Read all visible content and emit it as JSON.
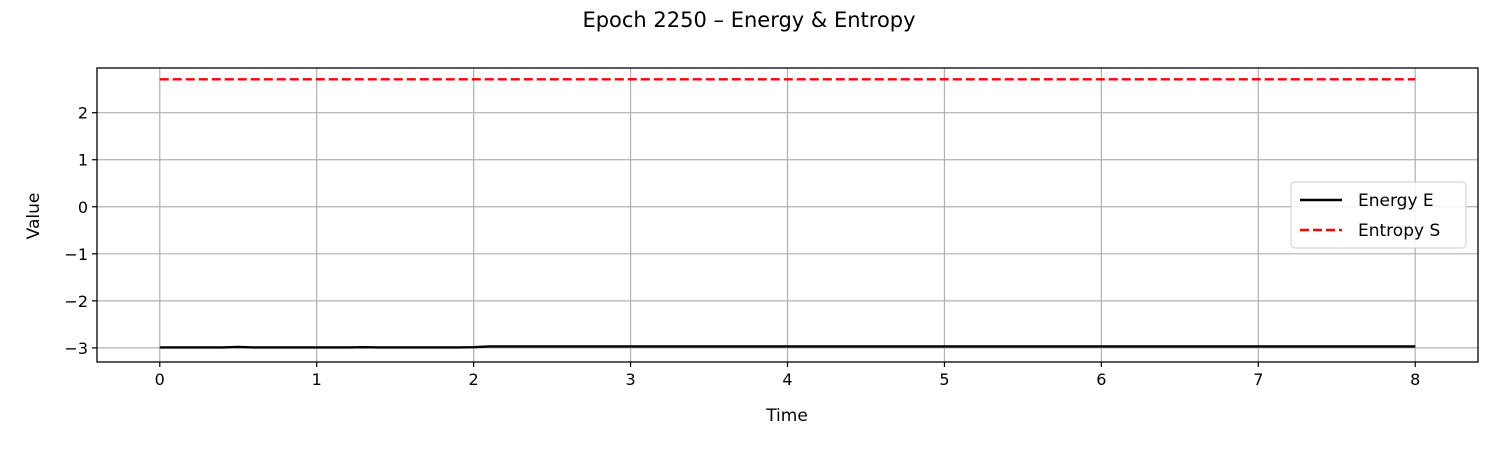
{
  "chart_data": {
    "type": "line",
    "title": "Epoch 2250 – Energy & Entropy",
    "xlabel": "Time",
    "ylabel": "Value",
    "xlim": [
      -0.4,
      8.4
    ],
    "ylim": [
      -3.3,
      2.95
    ],
    "xticks": [
      0,
      1,
      2,
      3,
      4,
      5,
      6,
      7,
      8
    ],
    "xtick_labels": [
      "0",
      "1",
      "2",
      "3",
      "4",
      "5",
      "6",
      "7",
      "8"
    ],
    "yticks": [
      -3,
      -2,
      -1,
      0,
      1,
      2
    ],
    "ytick_labels": [
      "−3",
      "−2",
      "−1",
      "0",
      "1",
      "2"
    ],
    "grid": true,
    "legend_position": "center-right",
    "series": [
      {
        "name": "Energy E",
        "color": "#000000",
        "style": "solid",
        "x": [
          0,
          0.1,
          0.2,
          0.3,
          0.4,
          0.5,
          0.6,
          0.7,
          0.8,
          0.9,
          1.0,
          1.1,
          1.2,
          1.3,
          1.4,
          1.5,
          1.6,
          1.7,
          1.8,
          1.9,
          2.0,
          2.1,
          2.2,
          2.5,
          3.0,
          3.5,
          4.0,
          4.5,
          5.0,
          5.5,
          6.0,
          6.5,
          7.0,
          7.5,
          8.0
        ],
        "y": [
          -2.99,
          -2.99,
          -2.99,
          -2.99,
          -2.99,
          -2.98,
          -2.99,
          -2.99,
          -2.99,
          -2.99,
          -2.99,
          -2.99,
          -2.99,
          -2.985,
          -2.99,
          -2.99,
          -2.99,
          -2.99,
          -2.99,
          -2.99,
          -2.985,
          -2.97,
          -2.97,
          -2.97,
          -2.97,
          -2.97,
          -2.97,
          -2.97,
          -2.97,
          -2.97,
          -2.97,
          -2.97,
          -2.97,
          -2.97,
          -2.97
        ]
      },
      {
        "name": "Entropy S",
        "color": "#ff0000",
        "style": "dashed",
        "x": [
          0,
          8
        ],
        "y": [
          2.71,
          2.71
        ]
      }
    ]
  }
}
